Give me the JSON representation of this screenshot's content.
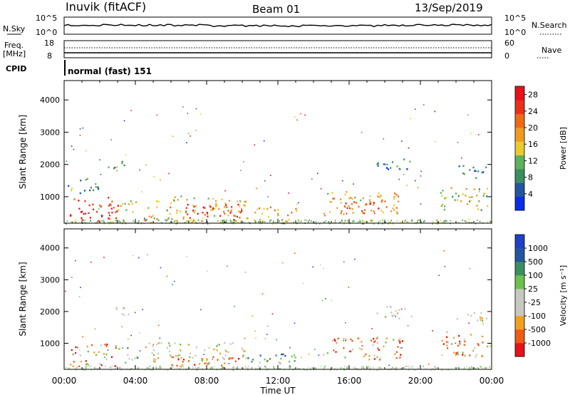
{
  "header": {
    "station": "Inuvik (fitACF)",
    "beam": "Beam 01",
    "date": "13/Sep/2019"
  },
  "summary": {
    "nsky_label": "N.Sky",
    "nsky_ticks": [
      "10^5",
      "10^0"
    ],
    "nsearch_label": "N.Search",
    "nsearch_ticks": [
      "10^5",
      "10^0"
    ],
    "freq_label": "Freq.",
    "freq_unit": "[MHz]",
    "freq_ticks": [
      "18",
      "8"
    ],
    "nave_label": "Nave",
    "nave_ticks": [
      "60",
      "0"
    ],
    "cpid_label": "CPID",
    "cpid_value": "normal (fast) 151"
  },
  "colors": {
    "power": [
      "#0a2ee8",
      "#23569f",
      "#3a8f60",
      "#5fb05a",
      "#e8cc2e",
      "#f09a20",
      "#f06a15",
      "#e8301a",
      "#e8101a"
    ],
    "velocity": [
      "#e8101a",
      "#f05a15",
      "#f0a020",
      "#c8c8c0",
      "#c8c8c0",
      "#6cc24a",
      "#3a8f60",
      "#23569f",
      "#2040c8"
    ]
  },
  "chart_data": [
    {
      "type": "heatmap",
      "title": "",
      "xlabel": "Time UT",
      "ylabel": "Slant Range [km]",
      "xlim": [
        "00:00",
        "24:00"
      ],
      "ylim": [
        180,
        4600
      ],
      "x_ticks": [
        "00:00",
        "04:00",
        "08:00",
        "12:00",
        "16:00",
        "20:00",
        "00:00"
      ],
      "y_ticks": [
        1000,
        2000,
        3000,
        4000
      ],
      "colorbar": {
        "label": "Power [dB]",
        "ticks": [
          4,
          8,
          12,
          16,
          20,
          24,
          28
        ],
        "range": [
          0,
          30
        ]
      },
      "regions": [
        {
          "t": [
            0.3,
            3.0
          ],
          "r": [
            200,
            1000
          ],
          "value": 26
        },
        {
          "t": [
            3.0,
            4.2
          ],
          "r": [
            500,
            950
          ],
          "value": 14
        },
        {
          "t": [
            2.3,
            3.6
          ],
          "r": [
            1900,
            2200
          ],
          "value": 10
        },
        {
          "t": [
            4.5,
            10.2
          ],
          "r": [
            200,
            1050
          ],
          "value": 16
        },
        {
          "t": [
            6.8,
            10.0
          ],
          "r": [
            300,
            800
          ],
          "value": 27
        },
        {
          "t": [
            10.2,
            13.0
          ],
          "r": [
            200,
            700
          ],
          "value": 18
        },
        {
          "t": [
            14.5,
            19.0
          ],
          "r": [
            500,
            1200
          ],
          "value": 18
        },
        {
          "t": [
            15.5,
            18.0
          ],
          "r": [
            500,
            900
          ],
          "value": 24
        },
        {
          "t": [
            17.5,
            19.5
          ],
          "r": [
            1800,
            2200
          ],
          "value": 6
        },
        {
          "t": [
            21.0,
            23.8
          ],
          "r": [
            600,
            1300
          ],
          "value": 14
        },
        {
          "t": [
            22.0,
            23.8
          ],
          "r": [
            1600,
            2000
          ],
          "value": 7
        },
        {
          "t": [
            0.2,
            2.0
          ],
          "r": [
            1100,
            1600
          ],
          "value": 10
        }
      ]
    },
    {
      "type": "heatmap",
      "title": "",
      "xlabel": "Time UT",
      "ylabel": "Slant Range [km]",
      "xlim": [
        "00:00",
        "24:00"
      ],
      "ylim": [
        180,
        4600
      ],
      "x_ticks": [
        "00:00",
        "04:00",
        "08:00",
        "12:00",
        "16:00",
        "20:00",
        "00:00"
      ],
      "y_ticks": [
        1000,
        2000,
        3000,
        4000
      ],
      "colorbar": {
        "label": "Velocity [m s⁻¹]",
        "ticks": [
          1000,
          500,
          100,
          25,
          -25,
          -100,
          -500,
          -1000
        ]
      },
      "regions": [
        {
          "t": [
            0.3,
            3.0
          ],
          "r": [
            300,
            1000
          ],
          "value": -100
        },
        {
          "t": [
            3.0,
            4.2
          ],
          "r": [
            400,
            900
          ],
          "value": 100
        },
        {
          "t": [
            2.3,
            3.6
          ],
          "r": [
            1900,
            2200
          ],
          "value": 0
        },
        {
          "t": [
            4.5,
            10.2
          ],
          "r": [
            500,
            1050
          ],
          "value": 0
        },
        {
          "t": [
            4.5,
            10.0
          ],
          "r": [
            200,
            600
          ],
          "value": -100
        },
        {
          "t": [
            10.2,
            13.0
          ],
          "r": [
            200,
            700
          ],
          "value": 100
        },
        {
          "t": [
            14.5,
            19.0
          ],
          "r": [
            500,
            1200
          ],
          "value": -100
        },
        {
          "t": [
            17.5,
            19.5
          ],
          "r": [
            1800,
            2200
          ],
          "value": 0
        },
        {
          "t": [
            21.0,
            23.8
          ],
          "r": [
            600,
            1300
          ],
          "value": -100
        },
        {
          "t": [
            22.0,
            23.8
          ],
          "r": [
            1600,
            2000
          ],
          "value": 0
        }
      ]
    }
  ]
}
